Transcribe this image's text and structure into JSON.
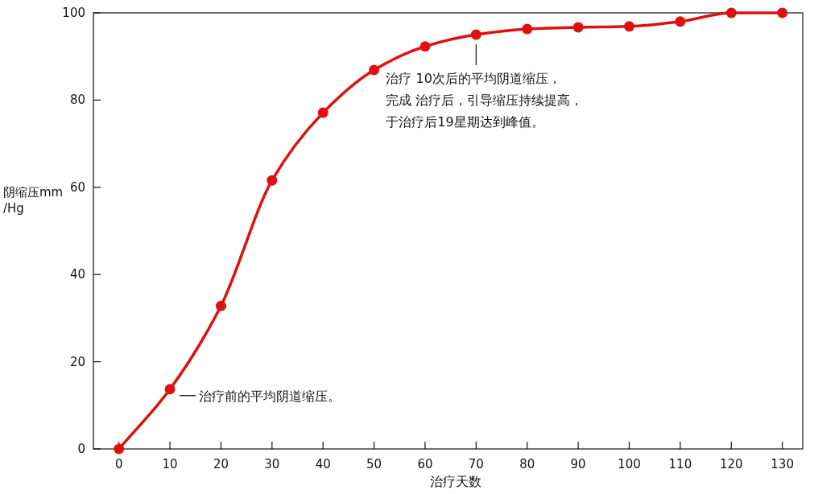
{
  "chart_data": {
    "type": "line",
    "xlabel": "治疗天数",
    "ylabel": "阴缩压mm\n/Hg",
    "x": [
      0,
      10,
      20,
      30,
      40,
      50,
      60,
      70,
      80,
      90,
      100,
      110,
      120,
      130
    ],
    "series": [
      {
        "color": "#e01010",
        "values": [
          0,
          13.7,
          32.8,
          61.6,
          77.1,
          86.9,
          92.3,
          95.0,
          96.3,
          96.7,
          96.9,
          98.0,
          100,
          100
        ]
      }
    ],
    "xlim": [
      -5,
      134
    ],
    "ylim": [
      0,
      100
    ],
    "xticks": [
      0,
      10,
      20,
      30,
      40,
      50,
      60,
      70,
      80,
      90,
      100,
      110,
      120,
      130
    ],
    "yticks": [
      0,
      20,
      40,
      60,
      80,
      100
    ],
    "marker": "circle",
    "line_style": "solid",
    "annotations": [
      {
        "text": "治疗前的平均阴道缩压。",
        "x": 10,
        "y": 13.7
      },
      {
        "text": "治疗 10次后的平均阴道缩压，完成 治疗后，引导缩压持续提高，于治疗后19星期达到峰值。",
        "x": 70,
        "y": 95.0
      }
    ]
  }
}
